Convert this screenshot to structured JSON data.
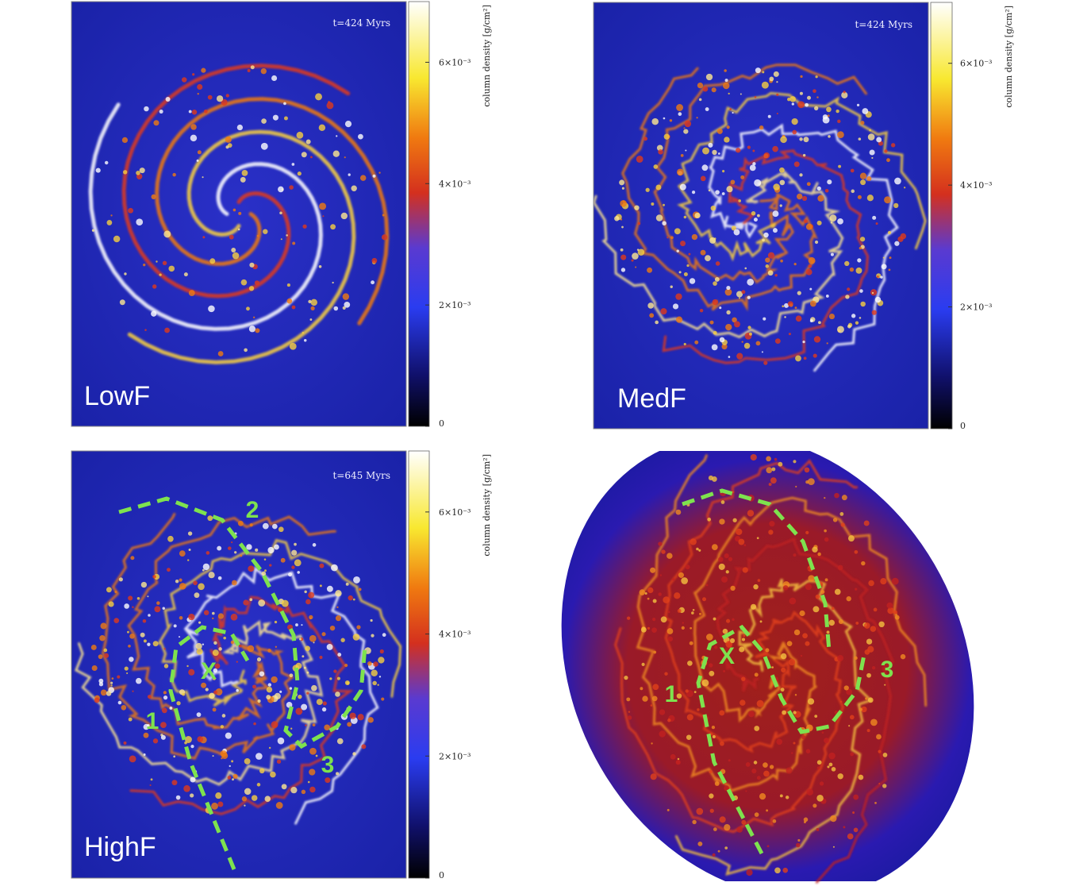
{
  "panels": [
    {
      "label": "LowF",
      "time": "t=424 Myrs",
      "colorbar": {
        "label": "column density [g/cm²]",
        "lim": [
          0,
          0.007
        ],
        "ticks": [
          {
            "value": 0,
            "label": "0"
          },
          {
            "value": 0.002,
            "label": "2×10⁻³"
          },
          {
            "value": 0.004,
            "label": "4×10⁻³"
          },
          {
            "value": 0.006,
            "label": "6×10⁻³"
          }
        ]
      }
    },
    {
      "label": "MedF",
      "time": "t=424 Myrs",
      "colorbar": {
        "label": "column density [g/cm²]",
        "lim": [
          0,
          0.007
        ],
        "ticks": [
          {
            "value": 0,
            "label": "0"
          },
          {
            "value": 0.002,
            "label": "2×10⁻³"
          },
          {
            "value": 0.004,
            "label": "4×10⁻³"
          },
          {
            "value": 0.006,
            "label": "6×10⁻³"
          }
        ]
      }
    },
    {
      "label": "HighF",
      "time": "t=645 Myrs",
      "colorbar": {
        "label": "column density [g/cm²]",
        "lim": [
          0,
          0.007
        ],
        "ticks": [
          {
            "value": 0,
            "label": "0"
          },
          {
            "value": 0.002,
            "label": "2×10⁻³"
          },
          {
            "value": 0.004,
            "label": "4×10⁻³"
          },
          {
            "value": 0.006,
            "label": "6×10⁻³"
          }
        ]
      },
      "annotations": [
        "2",
        "X",
        "1",
        "3"
      ]
    },
    {
      "annotations": [
        "X",
        "1",
        "3"
      ]
    }
  ]
}
